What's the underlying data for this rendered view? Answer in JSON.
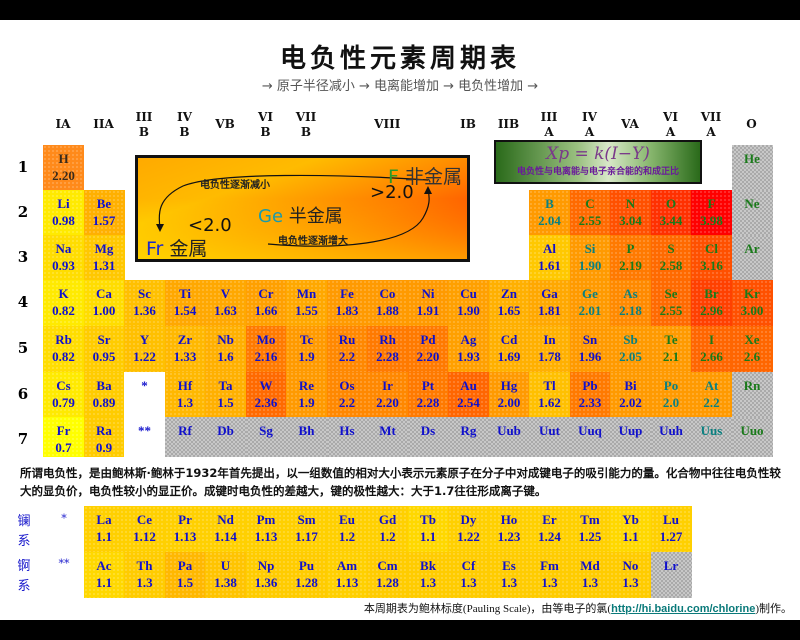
{
  "title": "电负性元素周期表",
  "subtitle": "→ 原子半径减小 → 电离能增加 → 电负性增加 →",
  "groups": [
    [
      "IA",
      ""
    ],
    [
      "IIA",
      ""
    ],
    [
      "III",
      "B"
    ],
    [
      "IV",
      "B"
    ],
    [
      "VB",
      ""
    ],
    [
      "VI",
      "B"
    ],
    [
      "VII",
      "B"
    ],
    [
      "VIII",
      ""
    ],
    [
      "",
      ""
    ],
    [
      "",
      ""
    ],
    [
      "IB",
      ""
    ],
    [
      "IIB",
      ""
    ],
    [
      "III",
      "A"
    ],
    [
      "IV",
      "A"
    ],
    [
      "VA",
      ""
    ],
    [
      "VI",
      "A"
    ],
    [
      "VII",
      "A"
    ],
    [
      "O",
      ""
    ]
  ],
  "periods": [
    "1",
    "2",
    "3",
    "4",
    "5",
    "6",
    "7"
  ],
  "legend": {
    "nonmetal_symbol": "F",
    "nonmetal_label": "非金属",
    "gt": ">2.0",
    "semimetal_symbol": "Ge",
    "semimetal_label": "半金属",
    "lt": "<2.0",
    "metal_symbol": "Fr",
    "metal_label": "金属",
    "decrease": "电负性逐渐减小",
    "increase": "电负性逐渐增大"
  },
  "formula": {
    "equation": "Xp = k(I−Y)",
    "caption": "电负性与电离能与电子亲合能的和成正比"
  },
  "colors": {
    "metal_text": "#1010cc",
    "semimetal_text": "#0a8080",
    "nonmetal_text": "#1a7a1a",
    "grey": "#c8c8c8"
  },
  "elements": [
    {
      "symbol": "H",
      "value": "2.20",
      "period": 1,
      "group": 1,
      "bg": "#ff8a1a",
      "fg": "#3a2a1a"
    },
    {
      "symbol": "He",
      "value": "",
      "period": 1,
      "group": 18,
      "bg": "grey",
      "fg": "#1a7a1a"
    },
    {
      "symbol": "Li",
      "value": "0.98",
      "period": 2,
      "group": 1,
      "bg": "#ffea00",
      "fg": "#1010cc"
    },
    {
      "symbol": "Be",
      "value": "1.57",
      "period": 2,
      "group": 2,
      "bg": "#ffb000",
      "fg": "#1010cc"
    },
    {
      "symbol": "B",
      "value": "2.04",
      "period": 2,
      "group": 13,
      "bg": "#ff9a00",
      "fg": "#0a8080"
    },
    {
      "symbol": "C",
      "value": "2.55",
      "period": 2,
      "group": 14,
      "bg": "#ff6a00",
      "fg": "#1a7a1a"
    },
    {
      "symbol": "N",
      "value": "3.04",
      "period": 2,
      "group": 15,
      "bg": "#ff5000",
      "fg": "#1a7a1a"
    },
    {
      "symbol": "O",
      "value": "3.44",
      "period": 2,
      "group": 16,
      "bg": "#ff3000",
      "fg": "#1a7a1a"
    },
    {
      "symbol": "F",
      "value": "3.98",
      "period": 2,
      "group": 17,
      "bg": "#ff0000",
      "fg": "#1a7a1a"
    },
    {
      "symbol": "Ne",
      "value": "",
      "period": 2,
      "group": 18,
      "bg": "grey",
      "fg": "#1a7a1a"
    },
    {
      "symbol": "Na",
      "value": "0.93",
      "period": 3,
      "group": 1,
      "bg": "#ffdd00",
      "fg": "#1010cc"
    },
    {
      "symbol": "Mg",
      "value": "1.31",
      "period": 3,
      "group": 2,
      "bg": "#ffc800",
      "fg": "#1010cc"
    },
    {
      "symbol": "Al",
      "value": "1.61",
      "period": 3,
      "group": 13,
      "bg": "#ffc800",
      "fg": "#1010cc"
    },
    {
      "symbol": "Si",
      "value": "1.90",
      "period": 3,
      "group": 14,
      "bg": "#ff9a00",
      "fg": "#0a8080"
    },
    {
      "symbol": "P",
      "value": "2.19",
      "period": 3,
      "group": 15,
      "bg": "#ff7a00",
      "fg": "#1a7a1a"
    },
    {
      "symbol": "S",
      "value": "2.58",
      "period": 3,
      "group": 16,
      "bg": "#ff6a00",
      "fg": "#1a7a1a"
    },
    {
      "symbol": "Cl",
      "value": "3.16",
      "period": 3,
      "group": 17,
      "bg": "#ff5000",
      "fg": "#1a7a1a"
    },
    {
      "symbol": "Ar",
      "value": "",
      "period": 3,
      "group": 18,
      "bg": "grey",
      "fg": "#1a7a1a"
    },
    {
      "symbol": "K",
      "value": "0.82",
      "period": 4,
      "group": 1,
      "bg": "#ffea00",
      "fg": "#1010cc"
    },
    {
      "symbol": "Ca",
      "value": "1.00",
      "period": 4,
      "group": 2,
      "bg": "#ffdd00",
      "fg": "#1010cc"
    },
    {
      "symbol": "Sc",
      "value": "1.36",
      "period": 4,
      "group": 3,
      "bg": "#ffc000",
      "fg": "#1010cc"
    },
    {
      "symbol": "Ti",
      "value": "1.54",
      "period": 4,
      "group": 4,
      "bg": "#ffa800",
      "fg": "#1010cc"
    },
    {
      "symbol": "V",
      "value": "1.63",
      "period": 4,
      "group": 5,
      "bg": "#ffa800",
      "fg": "#1010cc"
    },
    {
      "symbol": "Cr",
      "value": "1.66",
      "period": 4,
      "group": 6,
      "bg": "#ffa000",
      "fg": "#1010cc"
    },
    {
      "symbol": "Mn",
      "value": "1.55",
      "period": 4,
      "group": 7,
      "bg": "#ffa800",
      "fg": "#1010cc"
    },
    {
      "symbol": "Fe",
      "value": "1.83",
      "period": 4,
      "group": 8,
      "bg": "#ff9a00",
      "fg": "#1010cc"
    },
    {
      "symbol": "Co",
      "value": "1.88",
      "period": 4,
      "group": 9,
      "bg": "#ff9a00",
      "fg": "#1010cc"
    },
    {
      "symbol": "Ni",
      "value": "1.91",
      "period": 4,
      "group": 10,
      "bg": "#ff9a00",
      "fg": "#1010cc"
    },
    {
      "symbol": "Cu",
      "value": "1.90",
      "period": 4,
      "group": 11,
      "bg": "#ffa000",
      "fg": "#1010cc"
    },
    {
      "symbol": "Zn",
      "value": "1.65",
      "period": 4,
      "group": 12,
      "bg": "#ffb000",
      "fg": "#1010cc"
    },
    {
      "symbol": "Ga",
      "value": "1.81",
      "period": 4,
      "group": 13,
      "bg": "#ffa800",
      "fg": "#1010cc"
    },
    {
      "symbol": "Ge",
      "value": "2.01",
      "period": 4,
      "group": 14,
      "bg": "#ff9a00",
      "fg": "#0a8080"
    },
    {
      "symbol": "As",
      "value": "2.18",
      "period": 4,
      "group": 15,
      "bg": "#ff8a00",
      "fg": "#0a8080"
    },
    {
      "symbol": "Se",
      "value": "2.55",
      "period": 4,
      "group": 16,
      "bg": "#ff6a00",
      "fg": "#1a7a1a"
    },
    {
      "symbol": "Br",
      "value": "2.96",
      "period": 4,
      "group": 17,
      "bg": "#ff4000",
      "fg": "#1a7a1a"
    },
    {
      "symbol": "Kr",
      "value": "3.00",
      "period": 4,
      "group": 18,
      "bg": "#ff5000",
      "fg": "#1a7a1a"
    },
    {
      "symbol": "Rb",
      "value": "0.82",
      "period": 5,
      "group": 1,
      "bg": "#ffdd00",
      "fg": "#1010cc"
    },
    {
      "symbol": "Sr",
      "value": "0.95",
      "period": 5,
      "group": 2,
      "bg": "#ffcc00",
      "fg": "#1010cc"
    },
    {
      "symbol": "Y",
      "value": "1.22",
      "period": 5,
      "group": 3,
      "bg": "#ffc000",
      "fg": "#1010cc"
    },
    {
      "symbol": "Zr",
      "value": "1.33",
      "period": 5,
      "group": 4,
      "bg": "#ffb800",
      "fg": "#1010cc"
    },
    {
      "symbol": "Nb",
      "value": "1.6",
      "period": 5,
      "group": 5,
      "bg": "#ffb000",
      "fg": "#1010cc"
    },
    {
      "symbol": "Mo",
      "value": "2.16",
      "period": 5,
      "group": 6,
      "bg": "#ff7a00",
      "fg": "#1010cc"
    },
    {
      "symbol": "Tc",
      "value": "1.9",
      "period": 5,
      "group": 7,
      "bg": "#ff9a00",
      "fg": "#1010cc"
    },
    {
      "symbol": "Ru",
      "value": "2.2",
      "period": 5,
      "group": 8,
      "bg": "#ff8800",
      "fg": "#1010cc"
    },
    {
      "symbol": "Rh",
      "value": "2.28",
      "period": 5,
      "group": 9,
      "bg": "#ff7a00",
      "fg": "#1010cc"
    },
    {
      "symbol": "Pd",
      "value": "2.20",
      "period": 5,
      "group": 10,
      "bg": "#ff7a00",
      "fg": "#1010cc"
    },
    {
      "symbol": "Ag",
      "value": "1.93",
      "period": 5,
      "group": 11,
      "bg": "#ffa000",
      "fg": "#1010cc"
    },
    {
      "symbol": "Cd",
      "value": "1.69",
      "period": 5,
      "group": 12,
      "bg": "#ffb000",
      "fg": "#1010cc"
    },
    {
      "symbol": "In",
      "value": "1.78",
      "period": 5,
      "group": 13,
      "bg": "#ffb000",
      "fg": "#1010cc"
    },
    {
      "symbol": "Sn",
      "value": "1.96",
      "period": 5,
      "group": 14,
      "bg": "#ff9a00",
      "fg": "#1010cc"
    },
    {
      "symbol": "Sb",
      "value": "2.05",
      "period": 5,
      "group": 15,
      "bg": "#ff9a00",
      "fg": "#0a8080"
    },
    {
      "symbol": "Te",
      "value": "2.1",
      "period": 5,
      "group": 16,
      "bg": "#ff9a00",
      "fg": "#1a7a1a"
    },
    {
      "symbol": "I",
      "value": "2.66",
      "period": 5,
      "group": 17,
      "bg": "#ff6600",
      "fg": "#1a7a1a"
    },
    {
      "symbol": "Xe",
      "value": "2.6",
      "period": 5,
      "group": 18,
      "bg": "#ff6600",
      "fg": "#1a7a1a"
    },
    {
      "symbol": "Cs",
      "value": "0.79",
      "period": 6,
      "group": 1,
      "bg": "#ffea00",
      "fg": "#1010cc"
    },
    {
      "symbol": "Ba",
      "value": "0.89",
      "period": 6,
      "group": 2,
      "bg": "#ffcc00",
      "fg": "#1010cc"
    },
    {
      "symbol": "*",
      "value": "",
      "period": 6,
      "group": 3,
      "bg": "#ffffff",
      "fg": "#1010cc"
    },
    {
      "symbol": "Hf",
      "value": "1.3",
      "period": 6,
      "group": 4,
      "bg": "#ffb800",
      "fg": "#1010cc"
    },
    {
      "symbol": "Ta",
      "value": "1.5",
      "period": 6,
      "group": 5,
      "bg": "#ffb000",
      "fg": "#1010cc"
    },
    {
      "symbol": "W",
      "value": "2.36",
      "period": 6,
      "group": 6,
      "bg": "#ff6a00",
      "fg": "#1010cc"
    },
    {
      "symbol": "Re",
      "value": "1.9",
      "period": 6,
      "group": 7,
      "bg": "#ff9a00",
      "fg": "#1010cc"
    },
    {
      "symbol": "Os",
      "value": "2.2",
      "period": 6,
      "group": 8,
      "bg": "#ff8800",
      "fg": "#1010cc"
    },
    {
      "symbol": "Ir",
      "value": "2.20",
      "period": 6,
      "group": 9,
      "bg": "#ff8800",
      "fg": "#1010cc"
    },
    {
      "symbol": "Pt",
      "value": "2.28",
      "period": 6,
      "group": 10,
      "bg": "#ff7a00",
      "fg": "#1010cc"
    },
    {
      "symbol": "Au",
      "value": "2.54",
      "period": 6,
      "group": 11,
      "bg": "#ff6600",
      "fg": "#1010cc"
    },
    {
      "symbol": "Hg",
      "value": "2.00",
      "period": 6,
      "group": 12,
      "bg": "#ff9a00",
      "fg": "#1010cc"
    },
    {
      "symbol": "Tl",
      "value": "1.62",
      "period": 6,
      "group": 13,
      "bg": "#ffc000",
      "fg": "#1010cc"
    },
    {
      "symbol": "Pb",
      "value": "2.33",
      "period": 6,
      "group": 14,
      "bg": "#ff7a00",
      "fg": "#1010cc"
    },
    {
      "symbol": "Bi",
      "value": "2.02",
      "period": 6,
      "group": 15,
      "bg": "#ff9a00",
      "fg": "#1010cc"
    },
    {
      "symbol": "Po",
      "value": "2.0",
      "period": 6,
      "group": 16,
      "bg": "#ff9a00",
      "fg": "#0a8080"
    },
    {
      "symbol": "At",
      "value": "2.2",
      "period": 6,
      "group": 17,
      "bg": "#ff9a00",
      "fg": "#0a8080"
    },
    {
      "symbol": "Rn",
      "value": "",
      "period": 6,
      "group": 18,
      "bg": "grey",
      "fg": "#1a7a1a"
    },
    {
      "symbol": "Fr",
      "value": "0.7",
      "period": 7,
      "group": 1,
      "bg": "#ffff00",
      "fg": "#1010cc"
    },
    {
      "symbol": "Ra",
      "value": "0.9",
      "period": 7,
      "group": 2,
      "bg": "#ffcc00",
      "fg": "#1010cc"
    },
    {
      "symbol": "**",
      "value": "",
      "period": 7,
      "group": 3,
      "bg": "#ffffff",
      "fg": "#1010cc"
    },
    {
      "symbol": "Rf",
      "value": "",
      "period": 7,
      "group": 4,
      "bg": "grey",
      "fg": "#1010cc"
    },
    {
      "symbol": "Db",
      "value": "",
      "period": 7,
      "group": 5,
      "bg": "grey",
      "fg": "#1010cc"
    },
    {
      "symbol": "Sg",
      "value": "",
      "period": 7,
      "group": 6,
      "bg": "grey",
      "fg": "#1010cc"
    },
    {
      "symbol": "Bh",
      "value": "",
      "period": 7,
      "group": 7,
      "bg": "grey",
      "fg": "#1010cc"
    },
    {
      "symbol": "Hs",
      "value": "",
      "period": 7,
      "group": 8,
      "bg": "grey",
      "fg": "#1010cc"
    },
    {
      "symbol": "Mt",
      "value": "",
      "period": 7,
      "group": 9,
      "bg": "grey",
      "fg": "#1010cc"
    },
    {
      "symbol": "Ds",
      "value": "",
      "period": 7,
      "group": 10,
      "bg": "grey",
      "fg": "#1010cc"
    },
    {
      "symbol": "Rg",
      "value": "",
      "period": 7,
      "group": 11,
      "bg": "grey",
      "fg": "#1010cc"
    },
    {
      "symbol": "Uub",
      "value": "",
      "period": 7,
      "group": 12,
      "bg": "grey",
      "fg": "#1010cc"
    },
    {
      "symbol": "Uut",
      "value": "",
      "period": 7,
      "group": 13,
      "bg": "grey",
      "fg": "#1010cc"
    },
    {
      "symbol": "Uuq",
      "value": "",
      "period": 7,
      "group": 14,
      "bg": "grey",
      "fg": "#1010cc"
    },
    {
      "symbol": "Uup",
      "value": "",
      "period": 7,
      "group": 15,
      "bg": "grey",
      "fg": "#1010cc"
    },
    {
      "symbol": "Uuh",
      "value": "",
      "period": 7,
      "group": 16,
      "bg": "grey",
      "fg": "#1010cc"
    },
    {
      "symbol": "Uus",
      "value": "",
      "period": 7,
      "group": 17,
      "bg": "grey",
      "fg": "#0a8080"
    },
    {
      "symbol": "Uuo",
      "value": "",
      "period": 7,
      "group": 18,
      "bg": "grey",
      "fg": "#1a7a1a"
    }
  ],
  "description": "所谓电负性，是由鲍林斯·鲍林于1932年首先提出，以一组数值的相对大小表示元素原子在分子中对成键电子的吸引能力的量。化合物中往往电负性较大的显负价，电负性较小的显正价。成键时电负性的差越大，键的极性越大：大于1.7往往形成离子键。",
  "lanthanides": {
    "label": "镧系",
    "marker": "*",
    "items": [
      {
        "symbol": "La",
        "value": "1.1",
        "bg": "#ffd000"
      },
      {
        "symbol": "Ce",
        "value": "1.12",
        "bg": "#ffd000"
      },
      {
        "symbol": "Pr",
        "value": "1.13",
        "bg": "#ffd000"
      },
      {
        "symbol": "Nd",
        "value": "1.14",
        "bg": "#ffd000"
      },
      {
        "symbol": "Pm",
        "value": "1.13",
        "bg": "#ffd000"
      },
      {
        "symbol": "Sm",
        "value": "1.17",
        "bg": "#ffd000"
      },
      {
        "symbol": "Eu",
        "value": "1.2",
        "bg": "#ffd000"
      },
      {
        "symbol": "Gd",
        "value": "1.2",
        "bg": "#ffd000"
      },
      {
        "symbol": "Tb",
        "value": "1.1",
        "bg": "#ffd800"
      },
      {
        "symbol": "Dy",
        "value": "1.22",
        "bg": "#ffd000"
      },
      {
        "symbol": "Ho",
        "value": "1.23",
        "bg": "#ffd000"
      },
      {
        "symbol": "Er",
        "value": "1.24",
        "bg": "#ffd000"
      },
      {
        "symbol": "Tm",
        "value": "1.25",
        "bg": "#ffd000"
      },
      {
        "symbol": "Yb",
        "value": "1.1",
        "bg": "#ffd800"
      },
      {
        "symbol": "Lu",
        "value": "1.27",
        "bg": "#ffd000"
      }
    ]
  },
  "actinides": {
    "label": "锕系",
    "marker": "**",
    "items": [
      {
        "symbol": "Ac",
        "value": "1.1",
        "bg": "#ffd800"
      },
      {
        "symbol": "Th",
        "value": "1.3",
        "bg": "#ffcc00"
      },
      {
        "symbol": "Pa",
        "value": "1.5",
        "bg": "#ffb800"
      },
      {
        "symbol": "U",
        "value": "1.38",
        "bg": "#ffc400"
      },
      {
        "symbol": "Np",
        "value": "1.36",
        "bg": "#ffcc00"
      },
      {
        "symbol": "Pu",
        "value": "1.28",
        "bg": "#ffcc00"
      },
      {
        "symbol": "Am",
        "value": "1.13",
        "bg": "#ffd000"
      },
      {
        "symbol": "Cm",
        "value": "1.28",
        "bg": "#ffcc00"
      },
      {
        "symbol": "Bk",
        "value": "1.3",
        "bg": "#ffcc00"
      },
      {
        "symbol": "Cf",
        "value": "1.3",
        "bg": "#ffcc00"
      },
      {
        "symbol": "Es",
        "value": "1.3",
        "bg": "#ffcc00"
      },
      {
        "symbol": "Fm",
        "value": "1.3",
        "bg": "#ffcc00"
      },
      {
        "symbol": "Md",
        "value": "1.3",
        "bg": "#ffcc00"
      },
      {
        "symbol": "No",
        "value": "1.3",
        "bg": "#ffcc00"
      },
      {
        "symbol": "Lr",
        "value": "",
        "bg": "grey"
      }
    ]
  },
  "footer": {
    "prefix": "本周期表为鲍林标度(Pauling Scale)，由等电子的氯(",
    "link": "http://hi.baidu.com/chlorine",
    "suffix": ")制作。"
  }
}
